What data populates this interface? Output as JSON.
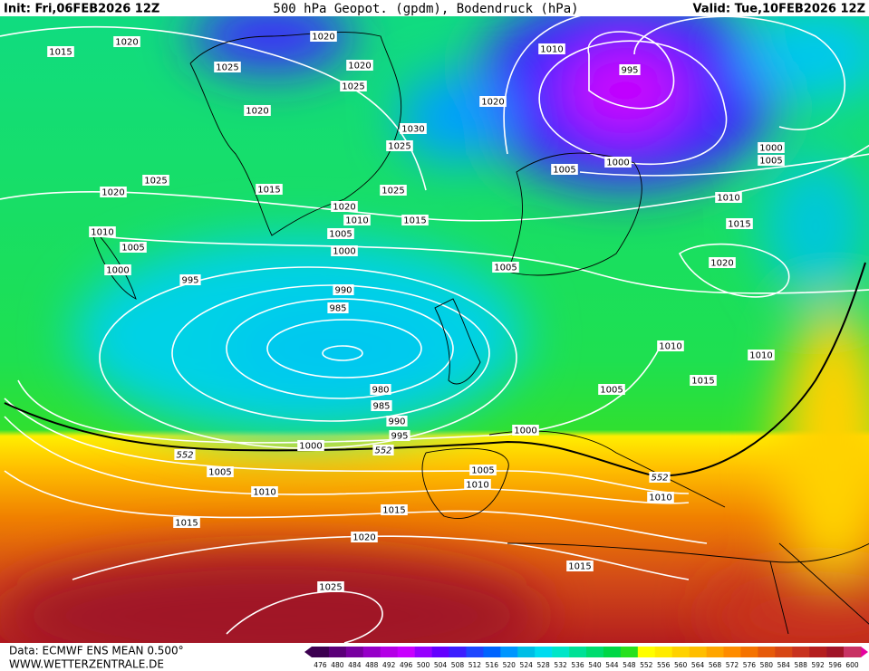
{
  "header": {
    "init": "Init: Fri,06FEB2026 12Z",
    "title": "500 hPa Geopot. (gpdm), Bodendruck (hPa)",
    "valid": "Valid: Tue,10FEB2026 12Z"
  },
  "footer": {
    "data": "Data: ECMWF ENS MEAN 0.500°",
    "site": "WWW.WETTERZENTRALE.DE"
  },
  "colorbar": {
    "labels": [
      476,
      480,
      484,
      488,
      492,
      496,
      500,
      504,
      508,
      512,
      516,
      520,
      524,
      528,
      532,
      536,
      540,
      544,
      548,
      552,
      556,
      560,
      564,
      568,
      572,
      576,
      580,
      584,
      588,
      592,
      596,
      600
    ],
    "colors": [
      "#3c0050",
      "#5a0078",
      "#7800a0",
      "#9600c8",
      "#b400e6",
      "#c800ff",
      "#9600ff",
      "#6400ff",
      "#3c1eff",
      "#1e46ff",
      "#0064ff",
      "#0096ff",
      "#00bee6",
      "#00dcf0",
      "#00e6c8",
      "#00e196",
      "#00dc6e",
      "#00d746",
      "#28e11e",
      "#ffff00",
      "#ffeb00",
      "#ffd200",
      "#ffbe00",
      "#ffa500",
      "#ff8c00",
      "#f57300",
      "#e65a0a",
      "#d74614",
      "#c8321e",
      "#b41e1e",
      "#a01428",
      "#c83264"
    ]
  },
  "isobars": {
    "labels": [
      1020,
      1015,
      1020,
      1025,
      1020,
      1025,
      1020,
      1010,
      995,
      1020,
      1030,
      1025,
      1005,
      1000,
      1000,
      1005,
      1025,
      1020,
      1015,
      1025,
      1020,
      1010,
      1015,
      1010,
      1015,
      1010,
      1005,
      1005,
      1000,
      1000,
      1005,
      1020,
      995,
      990,
      985,
      1010,
      1010,
      1015,
      980,
      1005,
      985,
      990,
      995,
      1000,
      1000,
      552,
      552,
      1005,
      1005,
      1010,
      552,
      1010,
      1010,
      1015,
      1015,
      1020,
      1015,
      1025
    ]
  }
}
